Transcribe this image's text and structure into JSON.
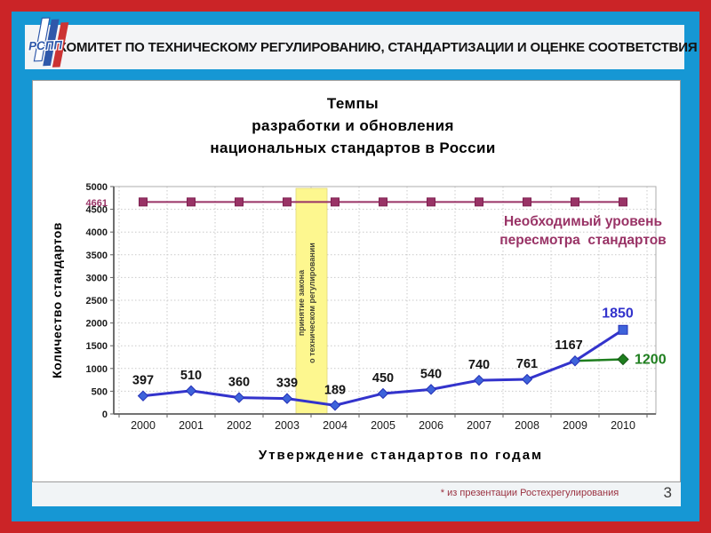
{
  "slide": {
    "header": {
      "logo_text": "РСПП",
      "title": "КОМИТЕТ ПО ТЕХНИЧЕСКОМУ РЕГУЛИРОВАНИЮ, СТАНДАРТИЗАЦИИ И ОЦЕНКЕ СООТВЕТСТВИЯ"
    },
    "footnote": "* из презентации Ростехрегулирования",
    "page_number": "3",
    "colors": {
      "frame_red": "#cb2427",
      "frame_blue": "#1697d4"
    }
  },
  "chart_data": {
    "type": "line",
    "title_lines": [
      "Темпы",
      "разработки и обновления",
      "национальных стандартов в России"
    ],
    "xlabel": "Утверждение стандартов по годам",
    "ylabel": "Количество стандартов",
    "categories": [
      "2000",
      "2001",
      "2002",
      "2003",
      "2004",
      "2005",
      "2006",
      "2007",
      "2008",
      "2009",
      "2010"
    ],
    "ylim": [
      0,
      5000
    ],
    "ytick_step": 500,
    "grid": "dotted",
    "series": [
      {
        "id": "blue-approved",
        "color": "#3333cc",
        "marker_fill": "#3e63da",
        "marker": "diamond",
        "last_marker": "square",
        "values": [
          397,
          510,
          360,
          339,
          189,
          450,
          540,
          740,
          761,
          1167,
          1850
        ]
      },
      {
        "id": "plum-required-level",
        "color": "#993366",
        "marker": "square",
        "values": [
          4661,
          4661,
          4661,
          4661,
          4661,
          4661,
          4661,
          4661,
          4661,
          4661,
          4661
        ]
      },
      {
        "id": "green-target",
        "color": "#1e7e1e",
        "marker": "diamond",
        "values": [
          null,
          null,
          null,
          null,
          null,
          null,
          null,
          null,
          null,
          1167,
          1200
        ]
      }
    ],
    "extra_y_tick": {
      "value": 4661,
      "label": "4661",
      "color": "#993366"
    },
    "annotation_band": {
      "between": [
        "2003",
        "2004"
      ],
      "fill": "#fdf78f",
      "lines": [
        "принятие закона",
        "о техническом регулировании"
      ]
    },
    "legend_note": {
      "color": "#993366",
      "lines": [
        "Необходимый уровень",
        "пересмотра  стандартов"
      ]
    }
  }
}
